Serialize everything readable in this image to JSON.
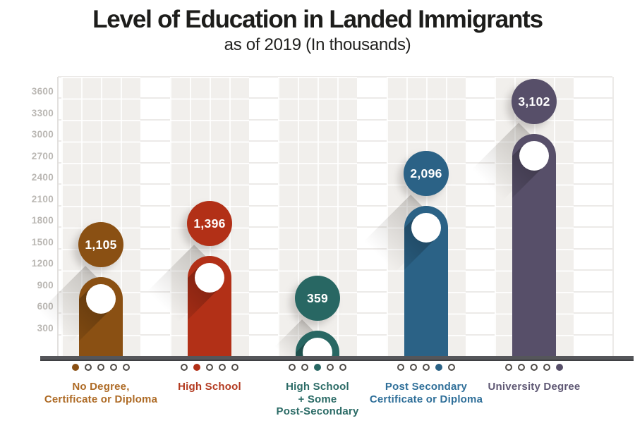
{
  "header": {
    "title": "Level of Education in Landed Immigrants",
    "subtitle": "as of 2019 (In thousands)"
  },
  "chart_data": {
    "type": "bar",
    "title": "Level of Education in Landed Immigrants",
    "subtitle": "as of 2019 (In thousands)",
    "unit": "In thousands",
    "xlabel": "",
    "ylabel": "",
    "ylim": [
      0,
      3900
    ],
    "grid": true,
    "legend": "none",
    "yticks": [
      300,
      600,
      900,
      1200,
      1500,
      1800,
      2100,
      2400,
      2700,
      3000,
      3300,
      3600
    ],
    "categories": [
      "No Degree, Certificate or Diploma",
      "High School",
      "High School + Some Post-Secondary",
      "Post Secondary Certificate or Diploma",
      "University Degree"
    ],
    "values": [
      1105,
      1396,
      359,
      2096,
      3102
    ],
    "series": [
      {
        "label_lines": [
          "No Degree,",
          "Certificate or Diploma"
        ],
        "value": 1105,
        "value_label": "1,105",
        "bar_color": "#8a5013",
        "label_color": "#ae6b26",
        "active_dot": 0
      },
      {
        "label_lines": [
          "High School"
        ],
        "value": 1396,
        "value_label": "1,396",
        "bar_color": "#b23017",
        "label_color": "#b33a20",
        "active_dot": 1
      },
      {
        "label_lines": [
          "High School",
          "+ Some",
          "Post-Secondary"
        ],
        "value": 359,
        "value_label": "359",
        "bar_color": "#286763",
        "label_color": "#2b6b66",
        "active_dot": 2
      },
      {
        "label_lines": [
          "Post Secondary",
          "Certificate or Diploma"
        ],
        "value": 2096,
        "value_label": "2,096",
        "bar_color": "#2b6286",
        "label_color": "#2f6f99",
        "active_dot": 3
      },
      {
        "label_lines": [
          "University Degree"
        ],
        "value": 3102,
        "value_label": "3,102",
        "bar_color": "#574f69",
        "label_color": "#5f5874",
        "active_dot": 4
      }
    ],
    "dots_per_category": 5,
    "colors": {
      "axis_bar": "#55565a",
      "tick_text": "#bab7b3",
      "panel_bg": "#f1efec",
      "gridline": "#eceae8",
      "inactive_dot_ring": "#514d49",
      "title_text": "#1d1d1b"
    }
  }
}
